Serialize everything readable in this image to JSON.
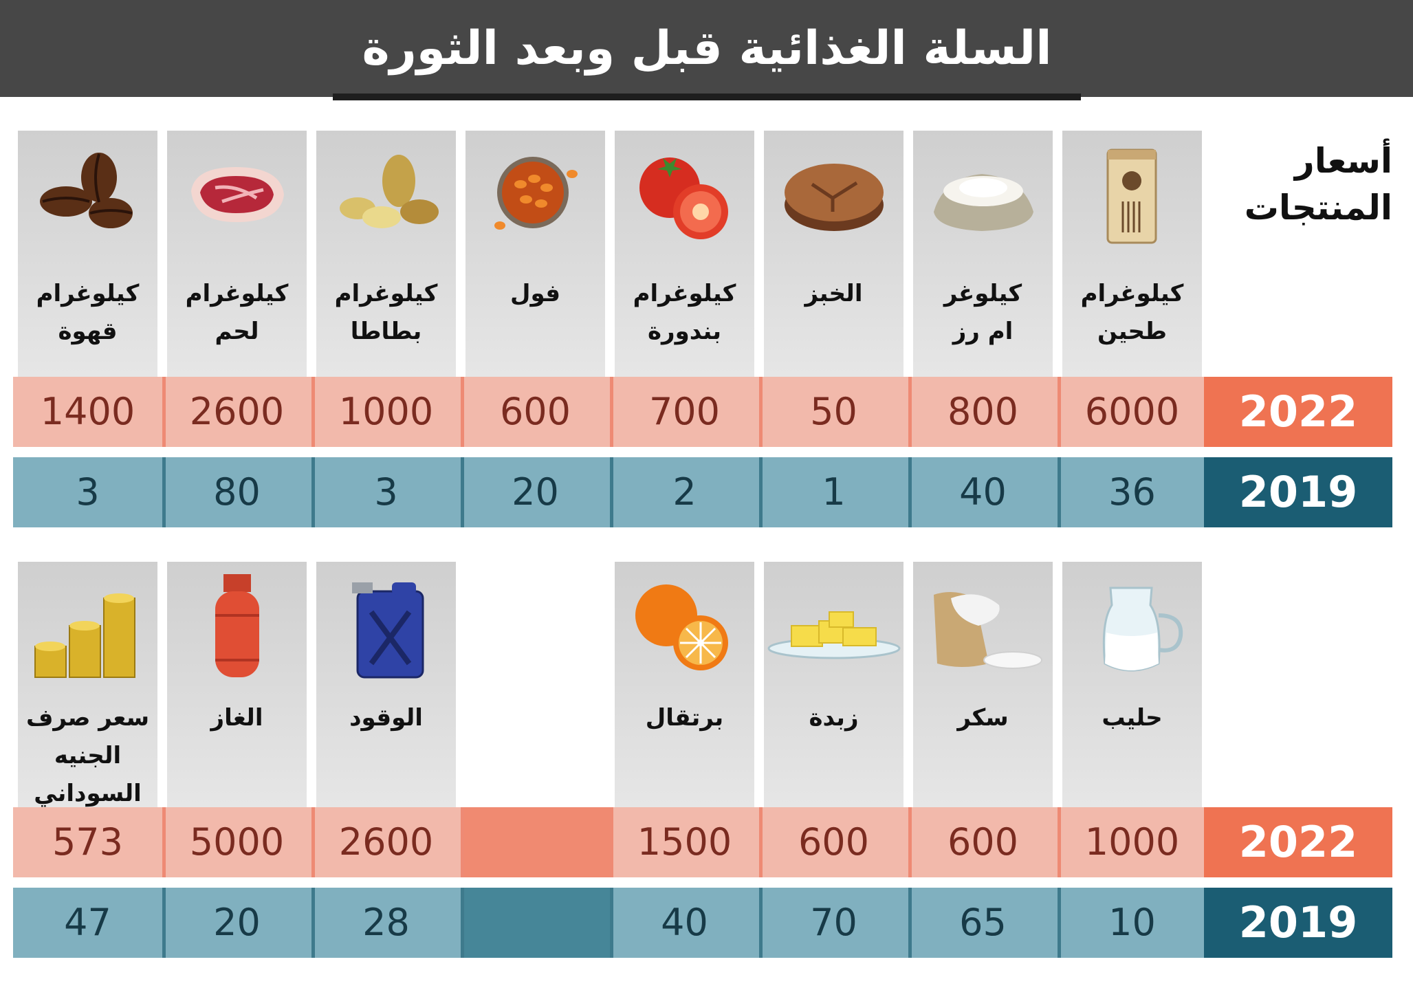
{
  "title": "السلة الغذائية قبل وبعد الثورة",
  "side_label": "أسعار\nالمنتجات",
  "year_2022": "2022",
  "year_2019": "2019",
  "row1": [
    {
      "name": "كيلوغرام\nطحين",
      "icon": "flour-bag-icon",
      "p2022": "6000",
      "p2019": "36"
    },
    {
      "name": "كيلوغر\nام رز",
      "icon": "rice-sack-icon",
      "p2022": "800",
      "p2019": "40"
    },
    {
      "name": "الخبز",
      "icon": "bread-icon",
      "p2022": "50",
      "p2019": "1"
    },
    {
      "name": "كيلوغرام\nبندورة",
      "icon": "tomato-icon",
      "p2022": "700",
      "p2019": "2"
    },
    {
      "name": "فول",
      "icon": "beans-bowl-icon",
      "p2022": "600",
      "p2019": "20"
    },
    {
      "name": "كيلوغرام\nبطاطا",
      "icon": "potato-icon",
      "p2022": "1000",
      "p2019": "3"
    },
    {
      "name": "كيلوغرام\nلحم",
      "icon": "meat-icon",
      "p2022": "2600",
      "p2019": "80"
    },
    {
      "name": "كيلوغرام\nقهوة",
      "icon": "coffee-beans-icon",
      "p2022": "1400",
      "p2019": "3"
    }
  ],
  "row2": [
    {
      "name": "حليب",
      "icon": "milk-jug-icon",
      "p2022": "1000",
      "p2019": "10"
    },
    {
      "name": "سكر",
      "icon": "sugar-sack-icon",
      "p2022": "600",
      "p2019": "65"
    },
    {
      "name": "زبدة",
      "icon": "butter-icon",
      "p2022": "600",
      "p2019": "70"
    },
    {
      "name": "برتقال",
      "icon": "orange-icon",
      "p2022": "1500",
      "p2019": "40"
    },
    {
      "name": "",
      "icon": "",
      "p2022": "",
      "p2019": ""
    },
    {
      "name": "الوقود",
      "icon": "fuel-canister-icon",
      "p2022": "2600",
      "p2019": "28"
    },
    {
      "name": "الغاز",
      "icon": "gas-cylinder-icon",
      "p2022": "5000",
      "p2019": "20"
    },
    {
      "name": "سعر صرف\nالجنيه\nالسوداني",
      "icon": "coins-stack-icon",
      "p2022": "573",
      "p2019": "47"
    }
  ],
  "colors": {
    "header_bg": "#474747",
    "price_2022_cell": "#f2b9ab",
    "price_2022_label": "#ef7352",
    "price_2019_cell": "#80b0bf",
    "price_2019_label": "#1b5d73"
  }
}
